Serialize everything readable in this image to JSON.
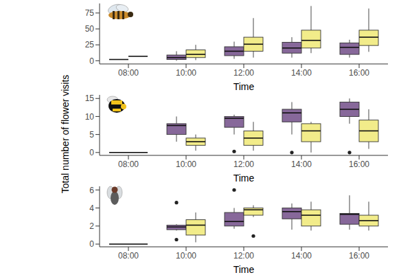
{
  "ylabel": "Total number of flower visits",
  "chart_data": [
    {
      "type": "box",
      "xlabel": "Time",
      "categories": [
        "08:00",
        "10:00",
        "12:00",
        "14:00",
        "16:00"
      ],
      "ylim": [
        -5,
        90
      ],
      "yticks": [
        0,
        25,
        50,
        75
      ],
      "grid": false,
      "series": [
        {
          "color": "#87689a",
          "values": [
            {
              "whisker_low": 2,
              "q1": 2,
              "median": 2,
              "q3": 2,
              "whisker_high": 2,
              "outliers": []
            },
            {
              "whisker_low": 0,
              "q1": 2,
              "median": 5,
              "q3": 9,
              "whisker_high": 15,
              "outliers": []
            },
            {
              "whisker_low": 3,
              "q1": 8,
              "median": 15,
              "q3": 22,
              "whisker_high": 30,
              "outliers": []
            },
            {
              "whisker_low": 5,
              "q1": 12,
              "median": 20,
              "q3": 29,
              "whisker_high": 37,
              "outliers": []
            },
            {
              "whisker_low": 5,
              "q1": 10,
              "median": 21,
              "q3": 28,
              "whisker_high": 33,
              "outliers": []
            }
          ]
        },
        {
          "color": "#f2ec8a",
          "values": [
            {
              "whisker_low": 7,
              "q1": 7,
              "median": 7,
              "q3": 7,
              "whisker_high": 7,
              "outliers": []
            },
            {
              "whisker_low": 1,
              "q1": 5,
              "median": 10,
              "q3": 17,
              "whisker_high": 25,
              "outliers": []
            },
            {
              "whisker_low": 5,
              "q1": 15,
              "median": 26,
              "q3": 37,
              "whisker_high": 67,
              "outliers": []
            },
            {
              "whisker_low": 12,
              "q1": 20,
              "median": 32,
              "q3": 48,
              "whisker_high": 86,
              "outliers": []
            },
            {
              "whisker_low": 14,
              "q1": 24,
              "median": 37,
              "q3": 48,
              "whisker_high": 82,
              "outliers": []
            }
          ]
        }
      ]
    },
    {
      "type": "box",
      "xlabel": "Time",
      "categories": [
        "08:00",
        "10:00",
        "12:00",
        "14:00",
        "16:00"
      ],
      "ylim": [
        -0.8,
        16
      ],
      "yticks": [
        0,
        5,
        10,
        15
      ],
      "grid": false,
      "series": [
        {
          "color": "#87689a",
          "values": [
            {
              "whisker_low": 0,
              "q1": 0,
              "median": 0,
              "q3": 0,
              "whisker_high": 0,
              "outliers": []
            },
            {
              "whisker_low": 3,
              "q1": 5,
              "median": 7.5,
              "q3": 8,
              "whisker_high": 10,
              "outliers": []
            },
            {
              "whisker_low": 5,
              "q1": 7,
              "median": 9.5,
              "q3": 10,
              "whisker_high": 10.5,
              "outliers": [
                0.3
              ]
            },
            {
              "whisker_low": 5,
              "q1": 8.5,
              "median": 11,
              "q3": 12,
              "whisker_high": 14,
              "outliers": [
                0
              ]
            },
            {
              "whisker_low": 8,
              "q1": 10,
              "median": 12,
              "q3": 14,
              "whisker_high": 15,
              "outliers": [
                0
              ]
            }
          ]
        },
        {
          "color": "#f2ec8a",
          "values": [
            {
              "whisker_low": 0,
              "q1": 0,
              "median": 0,
              "q3": 0,
              "whisker_high": 0,
              "outliers": []
            },
            {
              "whisker_low": 0.5,
              "q1": 2,
              "median": 3,
              "q3": 4,
              "whisker_high": 5,
              "outliers": []
            },
            {
              "whisker_low": 0.5,
              "q1": 2,
              "median": 4,
              "q3": 6,
              "whisker_high": 8.5,
              "outliers": []
            },
            {
              "whisker_low": 0,
              "q1": 3,
              "median": 6,
              "q3": 8,
              "whisker_high": 8.5,
              "outliers": []
            },
            {
              "whisker_low": 1,
              "q1": 3,
              "median": 6,
              "q3": 9,
              "whisker_high": 12,
              "outliers": []
            }
          ]
        }
      ]
    },
    {
      "type": "box",
      "xlabel": "Time",
      "categories": [
        "08:00",
        "10:00",
        "12:00",
        "14:00",
        "16:00"
      ],
      "ylim": [
        -0.3,
        6.4
      ],
      "yticks": [
        0,
        2,
        4,
        6
      ],
      "grid": false,
      "series": [
        {
          "color": "#87689a",
          "values": [
            {
              "whisker_low": 0,
              "q1": 0,
              "median": 0,
              "q3": 0,
              "whisker_high": 0,
              "outliers": []
            },
            {
              "whisker_low": 1.5,
              "q1": 1.6,
              "median": 1.9,
              "q3": 2.1,
              "whisker_high": 2.2,
              "outliers": [
                4.6,
                0.5
              ]
            },
            {
              "whisker_low": 1.7,
              "q1": 2,
              "median": 2.5,
              "q3": 3.5,
              "whisker_high": 4,
              "outliers": [
                6
              ]
            },
            {
              "whisker_low": 1.6,
              "q1": 2.8,
              "median": 3.6,
              "q3": 4,
              "whisker_high": 4.5,
              "outliers": []
            },
            {
              "whisker_low": 1.6,
              "q1": 2.2,
              "median": 3.3,
              "q3": 3.4,
              "whisker_high": 5.4,
              "outliers": []
            }
          ]
        },
        {
          "color": "#f2ec8a",
          "values": [
            {
              "whisker_low": 0,
              "q1": 0,
              "median": 0,
              "q3": 0,
              "whisker_high": 0,
              "outliers": []
            },
            {
              "whisker_low": 0.2,
              "q1": 1,
              "median": 2.1,
              "q3": 2.7,
              "whisker_high": 3.5,
              "outliers": []
            },
            {
              "whisker_low": 3,
              "q1": 3.2,
              "median": 3.8,
              "q3": 4,
              "whisker_high": 4.3,
              "outliers": [
                0.9
              ]
            },
            {
              "whisker_low": 1.5,
              "q1": 2,
              "median": 3.2,
              "q3": 3.8,
              "whisker_high": 4.7,
              "outliers": []
            },
            {
              "whisker_low": 1.5,
              "q1": 2,
              "median": 2.6,
              "q3": 3.2,
              "whisker_high": 4.7,
              "outliers": []
            }
          ]
        }
      ]
    }
  ]
}
